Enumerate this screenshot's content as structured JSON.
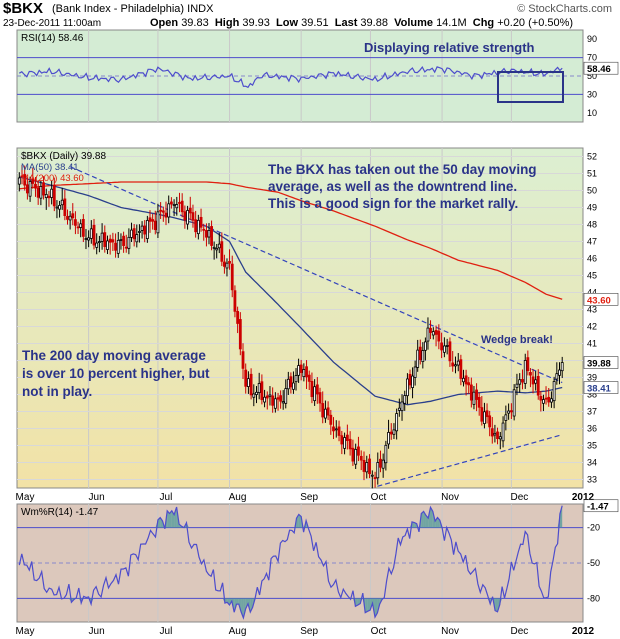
{
  "header": {
    "symbol": "$BKX",
    "name": "(Bank Index - Philadelphia)",
    "exchange": "INDX",
    "watermark": "© StockCharts.com",
    "date": "23-Dec-2011 11:00am",
    "open_label": "Open",
    "open": "39.83",
    "high_label": "High",
    "high": "39.93",
    "low_label": "Low",
    "low": "39.51",
    "last_label": "Last",
    "last": "39.88",
    "volume_label": "Volume",
    "volume": "14.1M",
    "chg_label": "Chg",
    "chg": "+0.20 (+0.50%)"
  },
  "colors": {
    "rsi_bg": "#d4ecd4",
    "wr_bg": "#dcc8bc",
    "price_top": "#dcefd2",
    "price_bottom": "#f2e2a6",
    "up_candle": "#000000",
    "down_candle": "#cc0000",
    "ma50": "#2a3f8c",
    "ma200": "#e02010",
    "indicator_line": "#4d4dcc",
    "fill_area": "#4d9999",
    "annotation_text": "#2a3388",
    "box": "#2a3388"
  },
  "chart_data": [
    {
      "type": "line",
      "panel": "rsi",
      "legend": "RSI(14) 58.46",
      "annotation": "Displaying relative strength",
      "ylim": [
        0,
        100
      ],
      "y_ticks": [
        "90",
        "70",
        "50",
        "30",
        "10"
      ],
      "reference_lines": [
        70,
        50,
        30
      ],
      "last_value_tag": "58.46",
      "x": [
        "2011-05-02",
        "2011-05-16",
        "2011-06-01",
        "2011-06-15",
        "2011-07-01",
        "2011-07-15",
        "2011-08-01",
        "2011-08-09",
        "2011-08-15",
        "2011-09-01",
        "2011-09-15",
        "2011-10-03",
        "2011-10-17",
        "2011-11-01",
        "2011-11-15",
        "2011-12-01",
        "2011-12-15",
        "2011-12-23"
      ],
      "values": [
        52,
        55,
        48,
        46,
        58,
        47,
        50,
        38,
        51,
        47,
        53,
        46,
        55,
        58,
        50,
        56,
        52,
        58.46
      ]
    },
    {
      "type": "candlestick",
      "panel": "price",
      "legend_title": "$BKX (Daily) 39.88",
      "legend_ma50": "MA(50) 38.41",
      "legend_ma200": "MA(200) 43.60",
      "ylim": [
        32.5,
        52.5
      ],
      "y_ticks": [
        "52",
        "51",
        "50",
        "49",
        "48",
        "47",
        "46",
        "45",
        "44",
        "43",
        "42",
        "41",
        "40",
        "39",
        "38",
        "37",
        "36",
        "35",
        "34",
        "33"
      ],
      "last_value_tags": [
        "39.88",
        "38.41",
        "43.60"
      ],
      "x_ticks": [
        "May",
        "Jun",
        "Jul",
        "Aug",
        "Sep",
        "Oct",
        "Nov",
        "Dec",
        "2012"
      ],
      "x": [
        "2011-05-02",
        "2011-05-16",
        "2011-06-01",
        "2011-06-15",
        "2011-07-01",
        "2011-07-08",
        "2011-07-22",
        "2011-08-01",
        "2011-08-08",
        "2011-08-22",
        "2011-09-01",
        "2011-09-15",
        "2011-10-03",
        "2011-10-17",
        "2011-10-27",
        "2011-11-08",
        "2011-11-25",
        "2011-12-07",
        "2011-12-16",
        "2011-12-23"
      ],
      "close": [
        50.6,
        49.6,
        47.2,
        46.8,
        48.4,
        49.3,
        47.5,
        45.4,
        38.5,
        37.5,
        39.6,
        36.0,
        33.1,
        38.5,
        41.9,
        39.5,
        35.3,
        39.7,
        37.3,
        39.88
      ],
      "ma50": [
        50.8,
        50.3,
        49.7,
        49.0,
        48.6,
        48.4,
        47.9,
        47.0,
        45.2,
        43.3,
        41.9,
        39.9,
        37.9,
        37.4,
        37.6,
        38.0,
        38.2,
        38.1,
        38.2,
        38.41
      ],
      "ma200": [
        50.1,
        50.3,
        50.4,
        50.5,
        50.5,
        50.5,
        50.5,
        50.4,
        50.2,
        49.9,
        49.4,
        48.8,
        47.9,
        47.1,
        46.6,
        45.9,
        45.3,
        44.6,
        43.9,
        43.6
      ],
      "downtrend_line": [
        [
          "2011-05-24",
          51.4
        ],
        [
          "2011-12-23",
          38.7
        ]
      ],
      "support_line": [
        [
          "2011-10-04",
          32.6
        ],
        [
          "2011-12-22",
          35.6
        ]
      ],
      "annotations": {
        "main": [
          "The BKX has taken out the 50 day moving",
          "average, as well as the downtrend line.",
          "This is a good sign for the market rally."
        ],
        "left": [
          "The 200 day moving average",
          "is over 10 percent higher, but",
          "not in play."
        ],
        "wedge": "Wedge break!"
      }
    },
    {
      "type": "line",
      "panel": "williams_r",
      "legend": "Wm%R(14) -1.47",
      "ylim": [
        -100,
        0
      ],
      "y_ticks": [
        "-20",
        "-50",
        "-80"
      ],
      "reference_lines": [
        -20,
        -50,
        -80
      ],
      "last_value_tag": "-1.47",
      "x_ticks": [
        "May",
        "Jun",
        "Jul",
        "Aug",
        "Sep",
        "Oct",
        "Nov",
        "Dec",
        "2012"
      ],
      "x": [
        "2011-05-02",
        "2011-05-16",
        "2011-06-01",
        "2011-06-15",
        "2011-07-01",
        "2011-07-08",
        "2011-07-22",
        "2011-08-01",
        "2011-08-09",
        "2011-08-22",
        "2011-09-01",
        "2011-09-15",
        "2011-10-04",
        "2011-10-14",
        "2011-10-27",
        "2011-11-08",
        "2011-11-25",
        "2011-12-07",
        "2011-12-16",
        "2011-12-23"
      ],
      "values": [
        -45,
        -75,
        -80,
        -60,
        -18,
        -5,
        -55,
        -85,
        -92,
        -40,
        -10,
        -70,
        -93,
        -30,
        -5,
        -40,
        -90,
        -25,
        -85,
        -1.47
      ]
    }
  ]
}
